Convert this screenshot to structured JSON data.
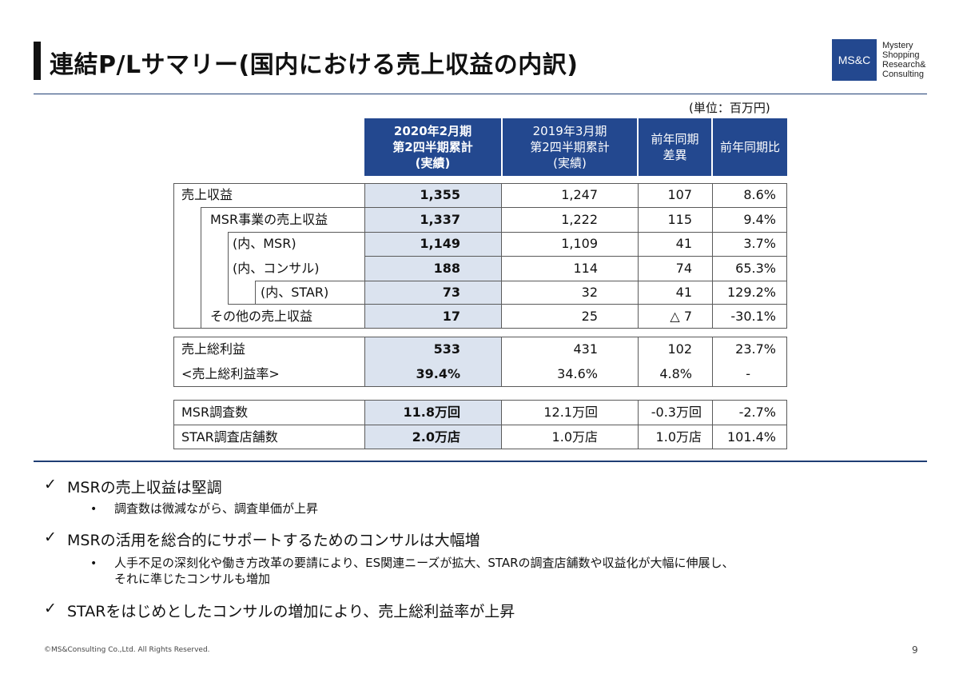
{
  "header": {
    "title": "連結P/Lサマリー(国内における売上収益の内訳)",
    "logo_abbr": "MS&C",
    "logo_lines": [
      "Mystery",
      "Shopping",
      "Research&",
      "Consulting"
    ]
  },
  "unit_note": "(単位：百万円)",
  "columns": [
    {
      "lines": [
        "2020年2月期",
        "第2四半期累計",
        "(実績)"
      ]
    },
    {
      "lines": [
        "2019年3月期",
        "第2四半期累計",
        "(実績)"
      ]
    },
    {
      "lines": [
        "前年同期",
        "差異"
      ]
    },
    {
      "lines": [
        "前年同期比"
      ]
    }
  ],
  "rows": [
    {
      "label": "売上収益",
      "current": "1,355",
      "prior": "1,247",
      "diff": "107",
      "ratio": "8.6%"
    },
    {
      "label": "MSR事業の売上収益",
      "current": "1,337",
      "prior": "1,222",
      "diff": "115",
      "ratio": "9.4%"
    },
    {
      "label": "(内、MSR)",
      "current": "1,149",
      "prior": "1,109",
      "diff": "41",
      "ratio": "3.7%"
    },
    {
      "label": "(内、コンサル)",
      "current": "188",
      "prior": "114",
      "diff": "74",
      "ratio": "65.3%"
    },
    {
      "label": "(内、STAR)",
      "current": "73",
      "prior": "32",
      "diff": "41",
      "ratio": "129.2%"
    },
    {
      "label": "その他の売上収益",
      "current": "17",
      "prior": "25",
      "diff": "△ 7",
      "ratio": "-30.1%"
    },
    {
      "label": "売上総利益",
      "current": "533",
      "prior": "431",
      "diff": "102",
      "ratio": "23.7%"
    },
    {
      "label": "<売上総利益率>",
      "current": "39.4%",
      "prior": "34.6%",
      "diff": "4.8%",
      "ratio": "-"
    },
    {
      "label": "MSR調査数",
      "current": "11.8万回",
      "prior": "12.1万回",
      "diff": "-0.3万回",
      "ratio": "-2.7%"
    },
    {
      "label": "STAR調査店舗数",
      "current": "2.0万店",
      "prior": "1.0万店",
      "diff": "1.0万店",
      "ratio": "101.4%"
    }
  ],
  "bullets": [
    {
      "check": "✓",
      "text": "MSRの売上収益は堅調",
      "subs": [
        "調査数は微減ながら、調査単価が上昇"
      ]
    },
    {
      "check": "✓",
      "text": "MSRの活用を総合的にサポートするためのコンサルは大幅増",
      "subs": [
        "人手不足の深刻化や働き方改革の要請により、ES関連ニーズが拡大、STARの調査店舗数や収益化が大幅に伸展し、",
        "それに準じたコンサルも増加"
      ]
    },
    {
      "check": "✓",
      "text": "STARをはじめとしたコンサルの増加により、売上総利益率が上昇",
      "subs": []
    }
  ],
  "sub_bullet_symbol": "•",
  "footer": {
    "copyright": "©MS&Consulting Co.,Ltd. All Rights Reserved.",
    "page_number": "9"
  }
}
